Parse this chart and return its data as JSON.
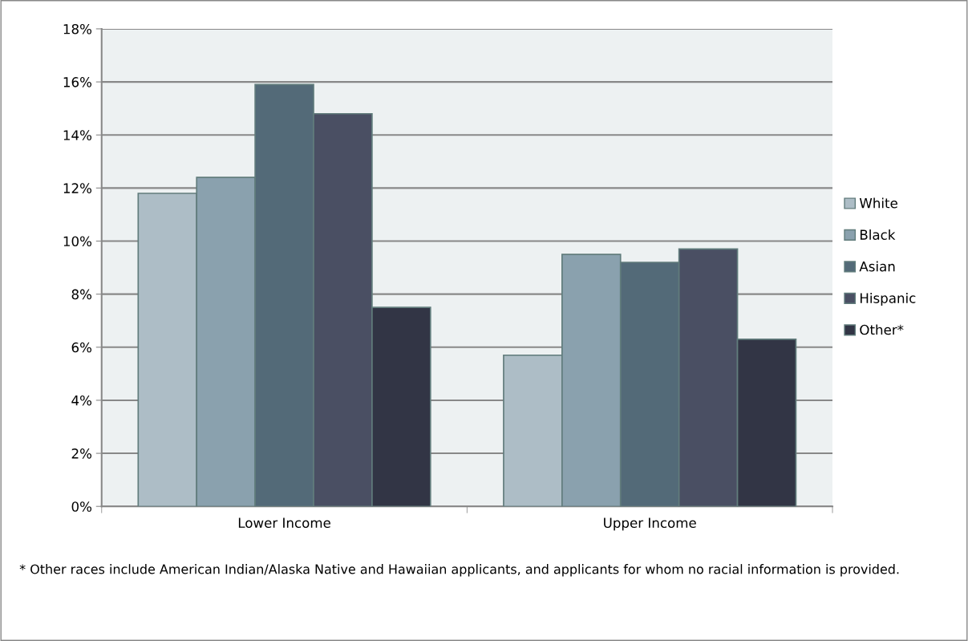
{
  "chart_data": {
    "type": "bar",
    "categories": [
      "Lower Income",
      "Upper Income"
    ],
    "series": [
      {
        "name": "White",
        "color": "#adbdc6",
        "values": [
          11.8,
          5.7
        ]
      },
      {
        "name": "Black",
        "color": "#8aa1ae",
        "values": [
          12.4,
          9.5
        ]
      },
      {
        "name": "Asian",
        "color": "#536a78",
        "values": [
          15.9,
          9.2
        ]
      },
      {
        "name": "Hispanic",
        "color": "#4a4f63",
        "values": [
          14.8,
          9.7
        ]
      },
      {
        "name": "Other*",
        "color": "#323545",
        "values": [
          7.5,
          6.3
        ]
      }
    ],
    "ylim": [
      0,
      18
    ],
    "yticks": [
      {
        "value": 0,
        "label": "0%"
      },
      {
        "value": 2,
        "label": "2%"
      },
      {
        "value": 4,
        "label": "4%"
      },
      {
        "value": 6,
        "label": "6%"
      },
      {
        "value": 8,
        "label": "8%"
      },
      {
        "value": 10,
        "label": "10%"
      },
      {
        "value": 12,
        "label": "12%"
      },
      {
        "value": 14,
        "label": "14%"
      },
      {
        "value": 16,
        "label": "16%"
      },
      {
        "value": 18,
        "label": "18%"
      }
    ],
    "grid": "y",
    "legend": "right",
    "annotations": [
      "* Other races include American Indian/Alaska Native and Hawaiian applicants, and applicants for whom no racial information is provided."
    ]
  }
}
